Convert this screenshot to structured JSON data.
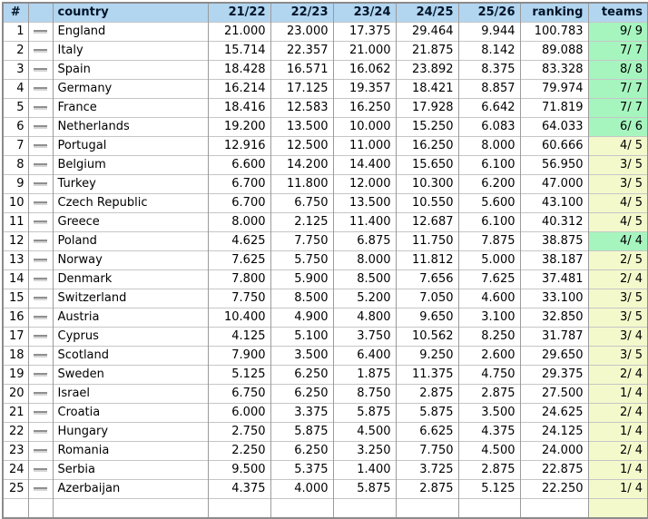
{
  "colors": {
    "header_bg": "#B2D5F0",
    "teams_green": "#A6F5BF",
    "teams_yellow": "#F4F9CC"
  },
  "table": {
    "headers": {
      "rank": "#",
      "move": "",
      "country": "country",
      "seasons": [
        "21/22",
        "22/23",
        "23/24",
        "24/25",
        "25/26"
      ],
      "ranking": "ranking",
      "teams": "teams"
    },
    "rows": [
      {
        "rank": "1",
        "move": "no-change",
        "country": "England",
        "seasons": [
          "21.000",
          "23.000",
          "17.375",
          "29.464",
          "9.944"
        ],
        "ranking": "100.783",
        "teams": "9/ 9",
        "teams_status": "green"
      },
      {
        "rank": "2",
        "move": "no-change",
        "country": "Italy",
        "seasons": [
          "15.714",
          "22.357",
          "21.000",
          "21.875",
          "8.142"
        ],
        "ranking": "89.088",
        "teams": "7/ 7",
        "teams_status": "green"
      },
      {
        "rank": "3",
        "move": "no-change",
        "country": "Spain",
        "seasons": [
          "18.428",
          "16.571",
          "16.062",
          "23.892",
          "8.375"
        ],
        "ranking": "83.328",
        "teams": "8/ 8",
        "teams_status": "green"
      },
      {
        "rank": "4",
        "move": "no-change",
        "country": "Germany",
        "seasons": [
          "16.214",
          "17.125",
          "19.357",
          "18.421",
          "8.857"
        ],
        "ranking": "79.974",
        "teams": "7/ 7",
        "teams_status": "green"
      },
      {
        "rank": "5",
        "move": "no-change",
        "country": "France",
        "seasons": [
          "18.416",
          "12.583",
          "16.250",
          "17.928",
          "6.642"
        ],
        "ranking": "71.819",
        "teams": "7/ 7",
        "teams_status": "green"
      },
      {
        "rank": "6",
        "move": "no-change",
        "country": "Netherlands",
        "seasons": [
          "19.200",
          "13.500",
          "10.000",
          "15.250",
          "6.083"
        ],
        "ranking": "64.033",
        "teams": "6/ 6",
        "teams_status": "green"
      },
      {
        "rank": "7",
        "move": "no-change",
        "country": "Portugal",
        "seasons": [
          "12.916",
          "12.500",
          "11.000",
          "16.250",
          "8.000"
        ],
        "ranking": "60.666",
        "teams": "4/ 5",
        "teams_status": "yellow"
      },
      {
        "rank": "8",
        "move": "no-change",
        "country": "Belgium",
        "seasons": [
          "6.600",
          "14.200",
          "14.400",
          "15.650",
          "6.100"
        ],
        "ranking": "56.950",
        "teams": "3/ 5",
        "teams_status": "yellow"
      },
      {
        "rank": "9",
        "move": "no-change",
        "country": "Turkey",
        "seasons": [
          "6.700",
          "11.800",
          "12.000",
          "10.300",
          "6.200"
        ],
        "ranking": "47.000",
        "teams": "3/ 5",
        "teams_status": "yellow"
      },
      {
        "rank": "10",
        "move": "no-change",
        "country": "Czech Republic",
        "seasons": [
          "6.700",
          "6.750",
          "13.500",
          "10.550",
          "5.600"
        ],
        "ranking": "43.100",
        "teams": "4/ 5",
        "teams_status": "yellow"
      },
      {
        "rank": "11",
        "move": "no-change",
        "country": "Greece",
        "seasons": [
          "8.000",
          "2.125",
          "11.400",
          "12.687",
          "6.100"
        ],
        "ranking": "40.312",
        "teams": "4/ 5",
        "teams_status": "yellow"
      },
      {
        "rank": "12",
        "move": "no-change",
        "country": "Poland",
        "seasons": [
          "4.625",
          "7.750",
          "6.875",
          "11.750",
          "7.875"
        ],
        "ranking": "38.875",
        "teams": "4/ 4",
        "teams_status": "green"
      },
      {
        "rank": "13",
        "move": "no-change",
        "country": "Norway",
        "seasons": [
          "7.625",
          "5.750",
          "8.000",
          "11.812",
          "5.000"
        ],
        "ranking": "38.187",
        "teams": "2/ 5",
        "teams_status": "yellow"
      },
      {
        "rank": "14",
        "move": "no-change",
        "country": "Denmark",
        "seasons": [
          "7.800",
          "5.900",
          "8.500",
          "7.656",
          "7.625"
        ],
        "ranking": "37.481",
        "teams": "2/ 4",
        "teams_status": "yellow"
      },
      {
        "rank": "15",
        "move": "no-change",
        "country": "Switzerland",
        "seasons": [
          "7.750",
          "8.500",
          "5.200",
          "7.050",
          "4.600"
        ],
        "ranking": "33.100",
        "teams": "3/ 5",
        "teams_status": "yellow"
      },
      {
        "rank": "16",
        "move": "no-change",
        "country": "Austria",
        "seasons": [
          "10.400",
          "4.900",
          "4.800",
          "9.650",
          "3.100"
        ],
        "ranking": "32.850",
        "teams": "3/ 5",
        "teams_status": "yellow"
      },
      {
        "rank": "17",
        "move": "no-change",
        "country": "Cyprus",
        "seasons": [
          "4.125",
          "5.100",
          "3.750",
          "10.562",
          "8.250"
        ],
        "ranking": "31.787",
        "teams": "3/ 4",
        "teams_status": "yellow"
      },
      {
        "rank": "18",
        "move": "no-change",
        "country": "Scotland",
        "seasons": [
          "7.900",
          "3.500",
          "6.400",
          "9.250",
          "2.600"
        ],
        "ranking": "29.650",
        "teams": "3/ 5",
        "teams_status": "yellow"
      },
      {
        "rank": "19",
        "move": "no-change",
        "country": "Sweden",
        "seasons": [
          "5.125",
          "6.250",
          "1.875",
          "11.375",
          "4.750"
        ],
        "ranking": "29.375",
        "teams": "2/ 4",
        "teams_status": "yellow"
      },
      {
        "rank": "20",
        "move": "no-change",
        "country": "Israel",
        "seasons": [
          "6.750",
          "6.250",
          "8.750",
          "2.875",
          "2.875"
        ],
        "ranking": "27.500",
        "teams": "1/ 4",
        "teams_status": "yellow"
      },
      {
        "rank": "21",
        "move": "no-change",
        "country": "Croatia",
        "seasons": [
          "6.000",
          "3.375",
          "5.875",
          "5.875",
          "3.500"
        ],
        "ranking": "24.625",
        "teams": "2/ 4",
        "teams_status": "yellow"
      },
      {
        "rank": "22",
        "move": "no-change",
        "country": "Hungary",
        "seasons": [
          "2.750",
          "5.875",
          "4.500",
          "6.625",
          "4.375"
        ],
        "ranking": "24.125",
        "teams": "1/ 4",
        "teams_status": "yellow"
      },
      {
        "rank": "23",
        "move": "no-change",
        "country": "Romania",
        "seasons": [
          "2.250",
          "6.250",
          "3.250",
          "7.750",
          "4.500"
        ],
        "ranking": "24.000",
        "teams": "2/ 4",
        "teams_status": "yellow"
      },
      {
        "rank": "24",
        "move": "no-change",
        "country": "Serbia",
        "seasons": [
          "9.500",
          "5.375",
          "1.400",
          "3.725",
          "2.875"
        ],
        "ranking": "22.875",
        "teams": "1/ 4",
        "teams_status": "yellow"
      },
      {
        "rank": "25",
        "move": "no-change",
        "country": "Azerbaijan",
        "seasons": [
          "4.375",
          "4.000",
          "5.875",
          "2.875",
          "5.125"
        ],
        "ranking": "22.250",
        "teams": "1/ 4",
        "teams_status": "yellow"
      }
    ]
  }
}
